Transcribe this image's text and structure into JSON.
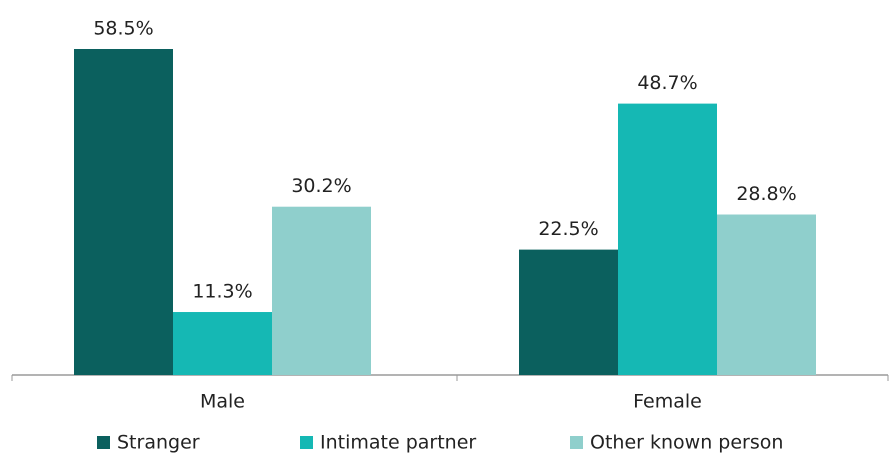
{
  "chart_data": {
    "type": "bar",
    "categories": [
      "Male",
      "Female"
    ],
    "series": [
      {
        "name": "Stranger",
        "color": "#0b605e",
        "values": [
          58.5,
          22.5
        ],
        "value_labels": [
          "58.5%",
          "22.5%"
        ]
      },
      {
        "name": "Intimate partner",
        "color": "#15b8b4",
        "values": [
          11.3,
          48.7
        ],
        "value_labels": [
          "11.3%",
          "48.7%"
        ]
      },
      {
        "name": "Other known person",
        "color": "#8fcfcc",
        "values": [
          30.2,
          28.8
        ],
        "value_labels": [
          "30.2%",
          "28.8%"
        ]
      }
    ]
  }
}
